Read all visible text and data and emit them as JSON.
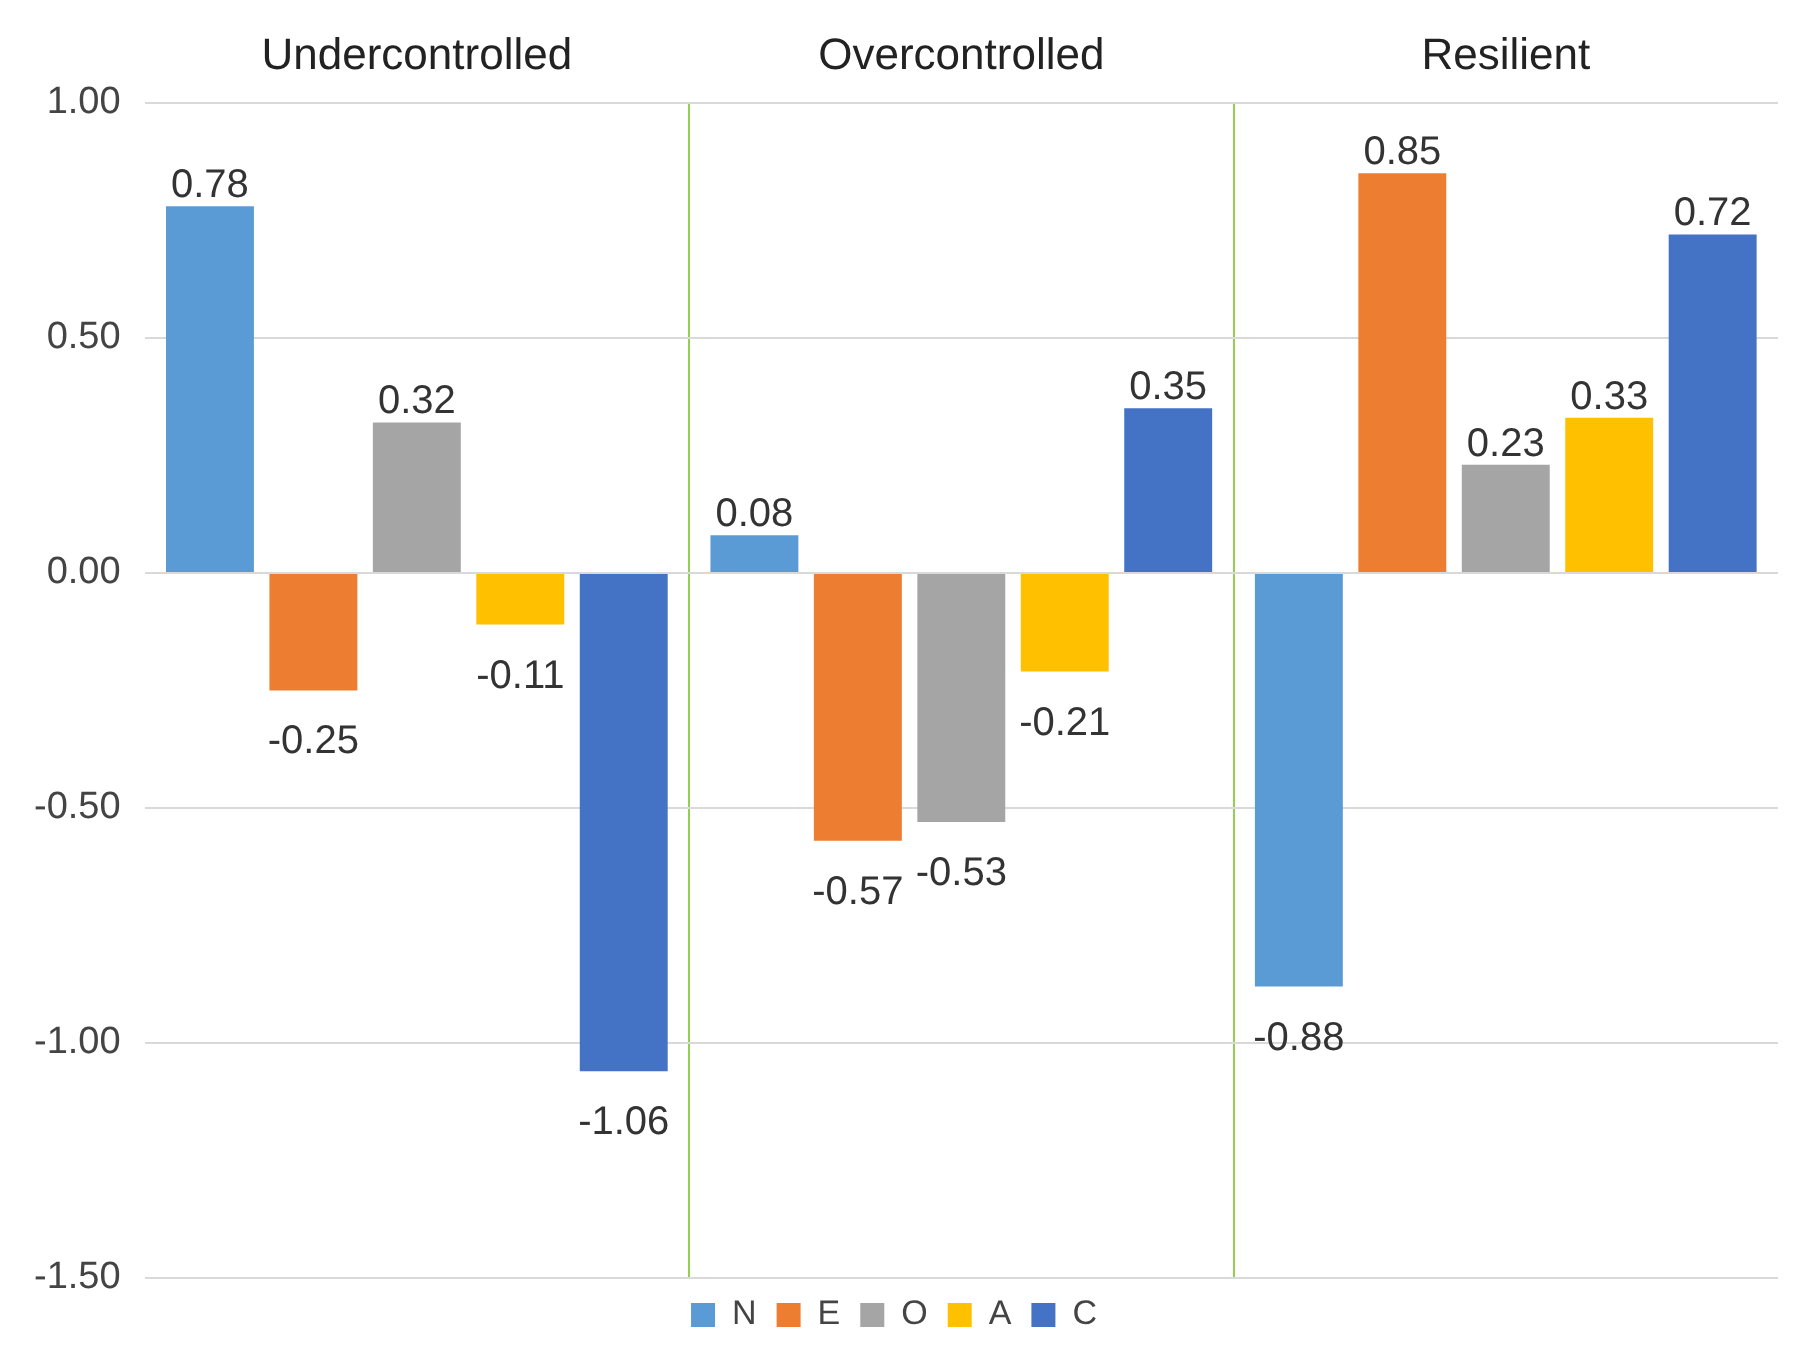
{
  "chart_data": {
    "type": "bar",
    "categories": [
      "Undercontrolled",
      "Overcontrolled",
      "Resilient"
    ],
    "series": [
      {
        "name": "N",
        "color": "#5b9bd5",
        "values": [
          0.78,
          0.08,
          -0.88
        ]
      },
      {
        "name": "E",
        "color": "#ed7d31",
        "values": [
          -0.25,
          -0.57,
          0.85
        ]
      },
      {
        "name": "O",
        "color": "#a5a5a5",
        "values": [
          0.32,
          -0.53,
          0.23
        ]
      },
      {
        "name": "A",
        "color": "#ffc000",
        "values": [
          -0.11,
          -0.21,
          0.33
        ]
      },
      {
        "name": "C",
        "color": "#4472c4",
        "values": [
          -1.06,
          0.35,
          0.72
        ]
      }
    ],
    "ylim": [
      -1.5,
      1.0
    ],
    "yticks": [
      {
        "value": -1.5,
        "label": "-1.50"
      },
      {
        "value": -1.0,
        "label": "-1.00"
      },
      {
        "value": -0.5,
        "label": "-0.50"
      },
      {
        "value": 0,
        "label": "0.00"
      },
      {
        "value": 0.5,
        "label": "0.50"
      },
      {
        "value": 1.0,
        "label": "1.00"
      }
    ],
    "grid": true,
    "legend": "bottom",
    "data_labels": true
  }
}
